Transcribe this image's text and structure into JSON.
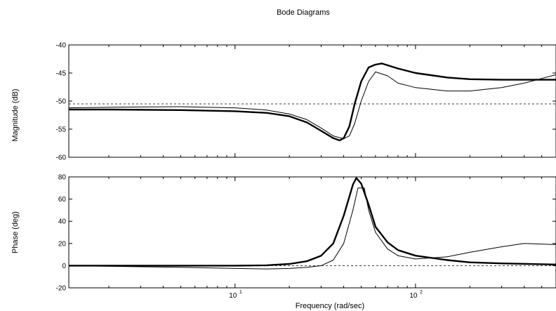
{
  "chart_data": {
    "type": "line",
    "title": "Bode Diagrams",
    "xlabel": "Frequency (rad/sec)",
    "xscale": "log",
    "xlim": [
      1.2,
      600
    ],
    "xtick_labels": [
      {
        "value": 10,
        "base": "10",
        "exp": "1"
      },
      {
        "value": 100,
        "base": "10",
        "exp": "2"
      }
    ],
    "grid": false,
    "legend": "none",
    "panels": [
      {
        "name": "magnitude",
        "ylabel": "Magnitude (dB)",
        "ylim": [
          -60,
          -40
        ],
        "yticks": [
          -60,
          -55,
          -50,
          -45,
          -40
        ],
        "reference_line": -50.5,
        "series": [
          {
            "style": "thick",
            "x": [
              1.2,
              2,
              5,
              10,
              15,
              20,
              25,
              30,
              35,
              38,
              40,
              43,
              46,
              50,
              55,
              60,
              65,
              80,
              100,
              150,
              200,
              300,
              600
            ],
            "y": [
              -51.5,
              -51.5,
              -51.6,
              -51.8,
              -52.1,
              -52.7,
              -53.8,
              -55.3,
              -56.6,
              -57,
              -56.6,
              -54.5,
              -50.5,
              -46.5,
              -44,
              -43.5,
              -43.3,
              -44.2,
              -45,
              -45.8,
              -46.1,
              -46.2,
              -46.2
            ]
          },
          {
            "style": "thin",
            "x": [
              1.2,
              2,
              5,
              10,
              15,
              20,
              25,
              30,
              35,
              40,
              43,
              46,
              50,
              55,
              60,
              70,
              80,
              100,
              150,
              200,
              300,
              400,
              600
            ],
            "y": [
              -51.2,
              -51.1,
              -51,
              -51.2,
              -51.6,
              -52.3,
              -53.3,
              -54.8,
              -56.2,
              -56.7,
              -56.2,
              -54,
              -50,
              -46.5,
              -44.8,
              -45.5,
              -46.8,
              -47.6,
              -48.2,
              -48.2,
              -47.6,
              -46.8,
              -45.3
            ]
          }
        ]
      },
      {
        "name": "phase",
        "ylabel": "Phase (deg)",
        "ylim": [
          -20,
          80
        ],
        "yticks": [
          -20,
          0,
          20,
          40,
          60,
          80
        ],
        "reference_line": 0,
        "series": [
          {
            "style": "thick",
            "x": [
              1.2,
              5,
              10,
              15,
              20,
              25,
              30,
              35,
              40,
              45,
              47,
              50,
              55,
              60,
              70,
              80,
              100,
              150,
              200,
              300,
              600
            ],
            "y": [
              0,
              0,
              0,
              0.3,
              1.5,
              4,
              9,
              20,
              45,
              73,
              79,
              74,
              55,
              35,
              21,
              14,
              9,
              5,
              3,
              2,
              1
            ]
          },
          {
            "style": "thin",
            "x": [
              1.2,
              5,
              10,
              15,
              20,
              25,
              30,
              35,
              40,
              45,
              48,
              52,
              55,
              60,
              70,
              80,
              100,
              150,
              200,
              300,
              400,
              600
            ],
            "y": [
              0,
              -1.5,
              -2.5,
              -3,
              -2.5,
              -1.5,
              0,
              5,
              20,
              50,
              70,
              70,
              50,
              30,
              15,
              9,
              6,
              8,
              12,
              17,
              20,
              19
            ]
          }
        ]
      }
    ]
  }
}
